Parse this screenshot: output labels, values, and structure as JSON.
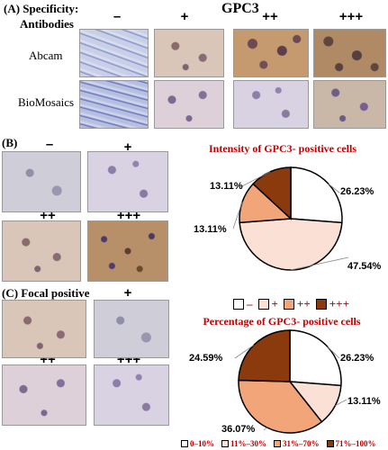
{
  "panel_a": {
    "label": "(A)",
    "specificity": "Specificity:",
    "antibodies": "Antibodies",
    "title": "GPC3",
    "levels": [
      "–",
      "+",
      "++",
      "+++"
    ],
    "rows": [
      "Abcam",
      "BioMosaics"
    ]
  },
  "panel_b": {
    "label": "(B)",
    "levels": [
      "–",
      "+",
      "++",
      "+++"
    ]
  },
  "panel_c": {
    "label": "(C)",
    "focal": "Focal positive",
    "levels": [
      "+",
      "++",
      "+++"
    ]
  },
  "chart_data": [
    {
      "type": "pie",
      "title": "Intensity of GPC3- positive cells",
      "categories": [
        "–",
        "+",
        "++",
        "+++"
      ],
      "values": [
        26.23,
        47.54,
        13.11,
        13.11
      ],
      "labels": [
        "26.23%",
        "47.54%",
        "13.11%",
        "13.11%"
      ],
      "colors": [
        "#ffffff",
        "#fbe0d6",
        "#f2a579",
        "#8b3a0e"
      ],
      "legend_position": "bottom"
    },
    {
      "type": "pie",
      "title": "Percentage of GPC3- positive cells",
      "categories": [
        "0–10%",
        "11%–30%",
        "31%–70%",
        "71%–100%"
      ],
      "values": [
        26.23,
        13.11,
        36.07,
        24.59
      ],
      "labels": [
        "26.23%",
        "13.11%",
        "36.07%",
        "24.59%"
      ],
      "colors": [
        "#ffffff",
        "#fbe0d6",
        "#f2a579",
        "#8b3a0e"
      ],
      "legend_position": "bottom"
    }
  ]
}
